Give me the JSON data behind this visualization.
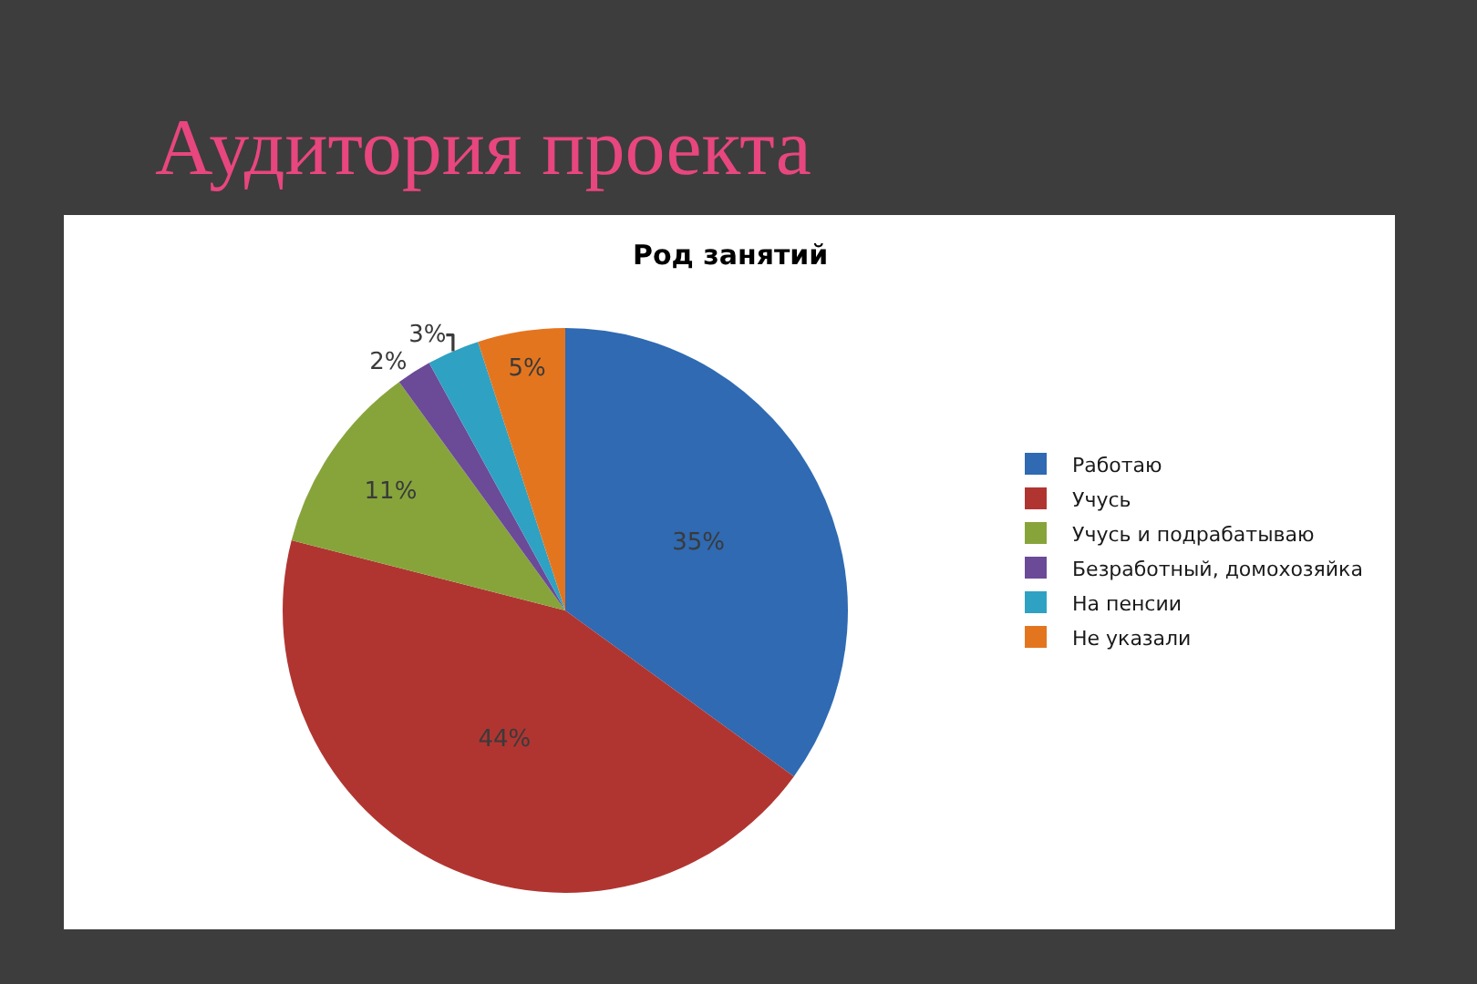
{
  "chart_data": {
    "type": "pie",
    "title": "Аудитория проекта",
    "subtitle": "Род занятий",
    "categories": [
      "Работаю",
      "Учусь",
      "Учусь и подрабатываю",
      "Безработный, домохозяйка",
      "На пенсии",
      "Не указали"
    ],
    "values": [
      35,
      44,
      11,
      2,
      3,
      5
    ],
    "value_labels": [
      "35%",
      "44%",
      "11%",
      "2%",
      "3%",
      "5%"
    ],
    "colors": [
      "#2f6ab2",
      "#b03531",
      "#87a43b",
      "#6b4a98",
      "#2fa1c2",
      "#e4751f"
    ],
    "legend": "right"
  }
}
